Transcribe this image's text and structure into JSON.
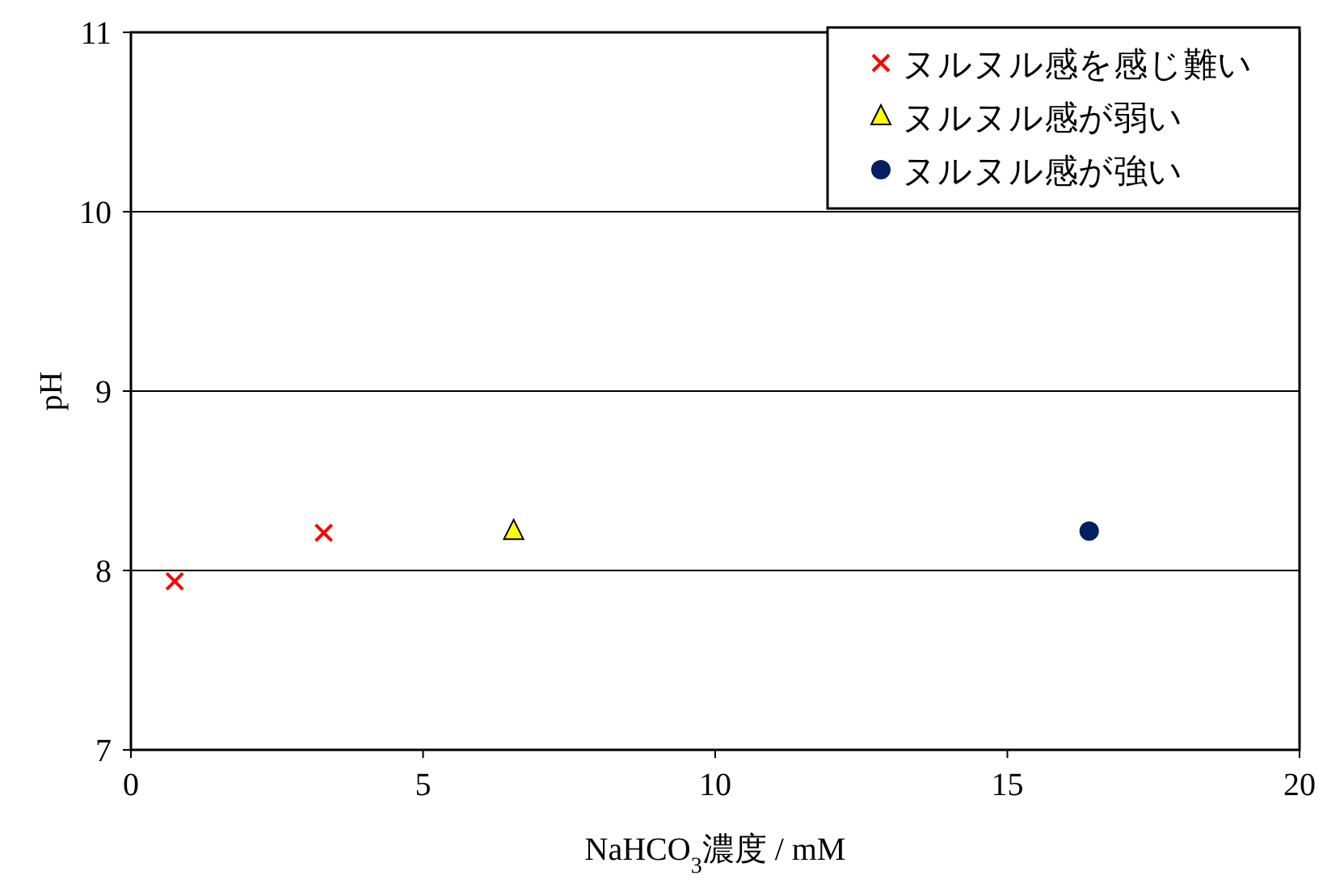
{
  "chart_data": {
    "type": "scatter",
    "xlabel": "NaHCO$_{3}$濃度 / mM",
    "ylabel": "pH",
    "xlim": [
      0,
      20
    ],
    "xticks": [
      0,
      5,
      10,
      15,
      20
    ],
    "ylim": [
      7,
      11
    ],
    "yticks": [
      7,
      8,
      9,
      10,
      11
    ],
    "grid": "y",
    "legend": "top right",
    "series": [
      {
        "name": "ヌルヌル感を感じ難い",
        "color": "#ff0000",
        "marker": "cross",
        "x": [
          0.75,
          3.3
        ],
        "values": [
          7.94,
          8.21
        ]
      },
      {
        "name": "ヌルヌル感が弱い",
        "color": "#ffff00",
        "marker": "triangle",
        "x": [
          6.55
        ],
        "values": [
          8.22
        ]
      },
      {
        "name": "ヌルヌル感が強い",
        "color": "#002060",
        "marker": "circle",
        "x": [
          16.4
        ],
        "values": [
          8.22
        ]
      }
    ]
  }
}
